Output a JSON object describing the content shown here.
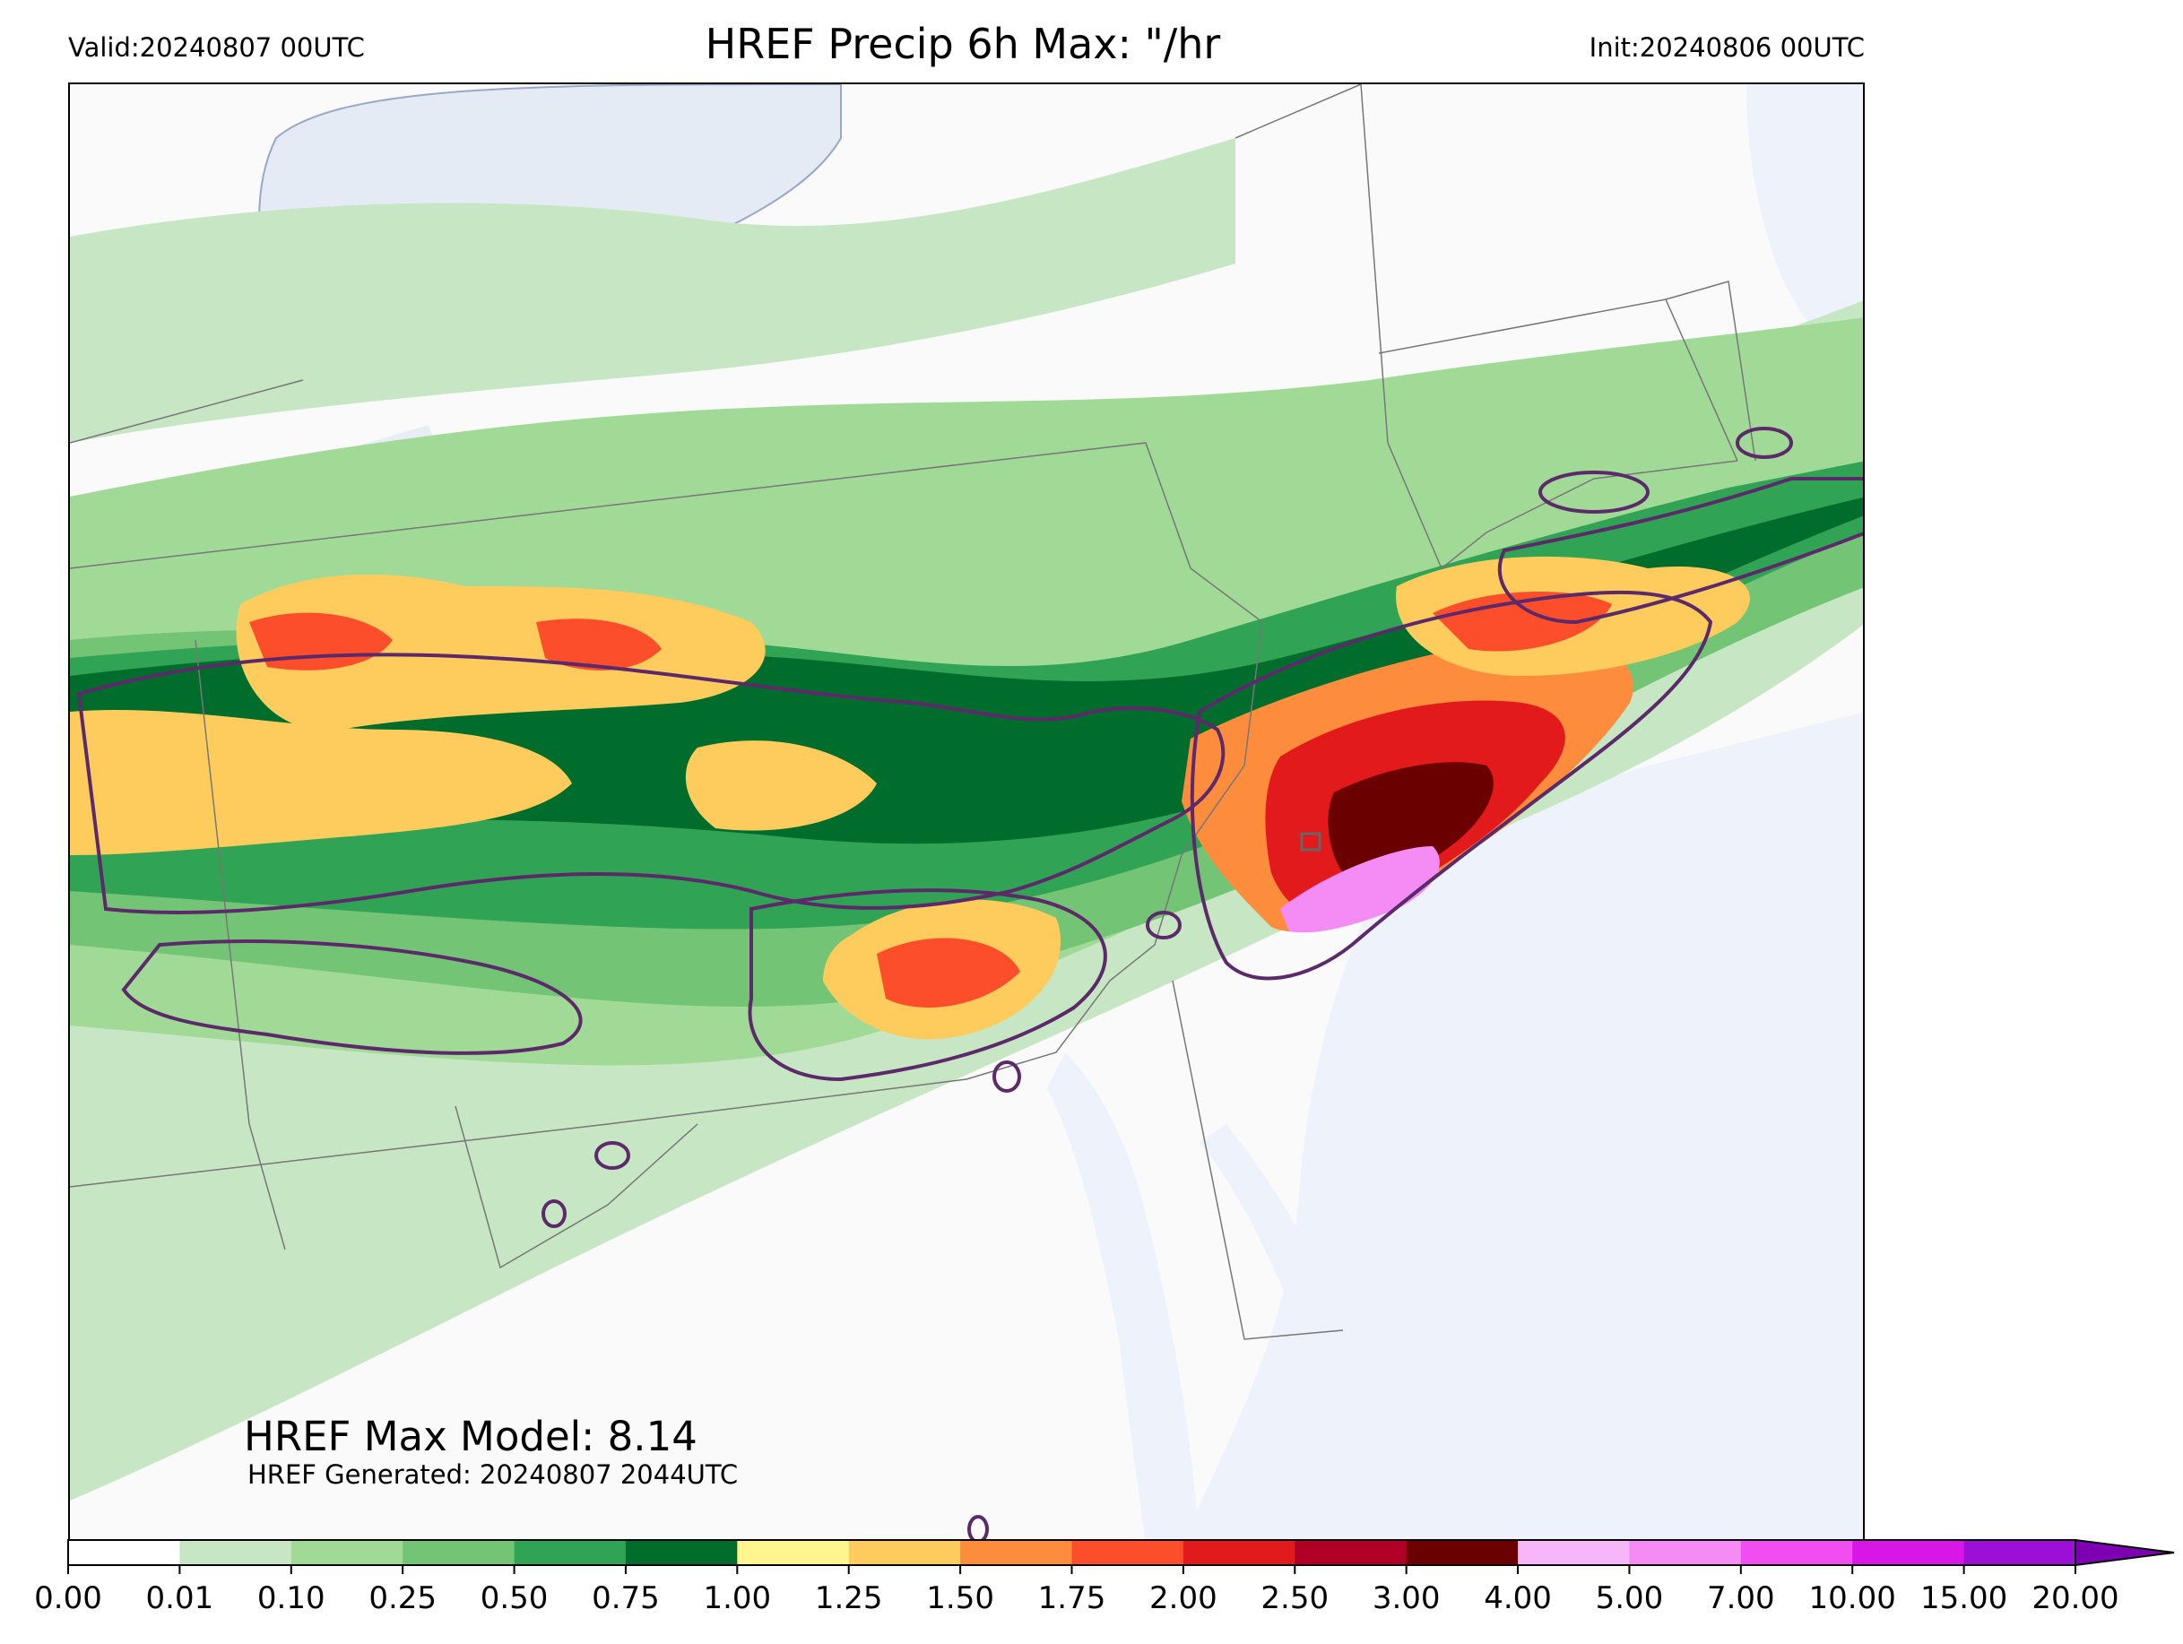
{
  "header": {
    "valid": "Valid:20240807 00UTC",
    "title": "HREF Precip 6h Max: \"/hr",
    "init": "Init:20240806 00UTC"
  },
  "annotations": {
    "max_model": "HREF Max Model: 8.14",
    "generated": "HREF Generated: 20240807 2044UTC"
  },
  "colorbar": {
    "ticks": [
      "0.00",
      "0.01",
      "0.10",
      "0.25",
      "0.50",
      "0.75",
      "1.00",
      "1.25",
      "1.50",
      "1.75",
      "2.00",
      "2.50",
      "3.00",
      "4.00",
      "5.00",
      "7.00",
      "10.00",
      "15.00",
      "20.00"
    ],
    "colors": [
      "#ffffff",
      "#c7e6c3",
      "#a1da97",
      "#74c476",
      "#31a354",
      "#006d2c",
      "#fff68f",
      "#fecc5c",
      "#fd8d3c",
      "#fc4e2a",
      "#e31a1c",
      "#b10026",
      "#6b0000",
      "#f7b6f7",
      "#f58bf5",
      "#f04ef0",
      "#d816e6",
      "#9b0fd6"
    ],
    "extend_color": "#7e00b3"
  },
  "map_colors": {
    "water": "#eef2fa",
    "land": "#fafafa",
    "lightgreen": "#c7e6c3",
    "green": "#a1da97",
    "midgreen": "#74c476",
    "darkgreen": "#31a354",
    "forest": "#006d2c",
    "yellow": "#fff68f",
    "orange": "#fecc5c",
    "darkorange": "#fd8d3c",
    "red": "#fc4e2a",
    "crimson": "#e31a1c",
    "maroon": "#b10026",
    "dark": "#6b0000",
    "pink": "#f58bf5",
    "contour": "#5c2a6a"
  }
}
